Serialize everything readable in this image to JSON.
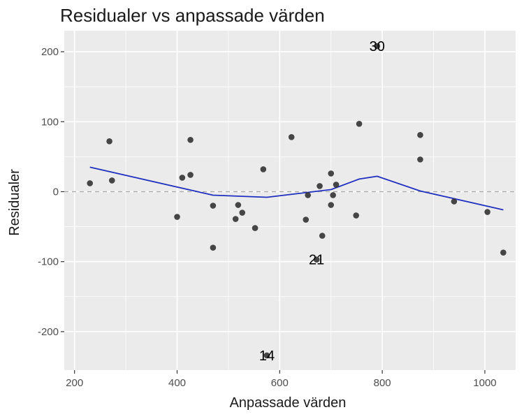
{
  "chart_data": {
    "type": "scatter",
    "title": "Residualer vs anpassade värden",
    "xlabel": "Anpassade värden",
    "ylabel": "Residualer",
    "xlim": [
      180,
      1060
    ],
    "ylim": [
      -255,
      230
    ],
    "x_ticks": [
      200,
      400,
      600,
      800,
      1000
    ],
    "y_ticks": [
      -200,
      -100,
      0,
      100,
      200
    ],
    "x_tick_labels": [
      "200",
      "400",
      "600",
      "800",
      "1000"
    ],
    "y_tick_labels": [
      "-200",
      "-100",
      "0",
      "100",
      "200"
    ],
    "grid": true,
    "reference_line": {
      "y": 0,
      "style": "dashed",
      "color": "#a6a6a6"
    },
    "colors": {
      "panel": "#ebebeb",
      "grid": "#ffffff",
      "point": "#333333",
      "smooth": "#1f2fbf"
    },
    "points": [
      {
        "x": 230,
        "y": 12
      },
      {
        "x": 268,
        "y": 72
      },
      {
        "x": 273,
        "y": 16
      },
      {
        "x": 400,
        "y": -36
      },
      {
        "x": 410,
        "y": 20
      },
      {
        "x": 426,
        "y": 24
      },
      {
        "x": 426,
        "y": 74
      },
      {
        "x": 470,
        "y": -20
      },
      {
        "x": 470,
        "y": -80
      },
      {
        "x": 514,
        "y": -39
      },
      {
        "x": 519,
        "y": -19
      },
      {
        "x": 527,
        "y": -30
      },
      {
        "x": 552,
        "y": -52
      },
      {
        "x": 568,
        "y": 32
      },
      {
        "x": 575,
        "y": -234
      },
      {
        "x": 623,
        "y": 78
      },
      {
        "x": 651,
        "y": -40
      },
      {
        "x": 655,
        "y": -5
      },
      {
        "x": 672,
        "y": -97
      },
      {
        "x": 678,
        "y": 8
      },
      {
        "x": 683,
        "y": -63
      },
      {
        "x": 700,
        "y": 26
      },
      {
        "x": 700,
        "y": -19
      },
      {
        "x": 704,
        "y": -5
      },
      {
        "x": 710,
        "y": 10
      },
      {
        "x": 749,
        "y": -34
      },
      {
        "x": 755,
        "y": 97
      },
      {
        "x": 790,
        "y": 208
      },
      {
        "x": 874,
        "y": 81
      },
      {
        "x": 874,
        "y": 46
      },
      {
        "x": 940,
        "y": -14
      },
      {
        "x": 1005,
        "y": -29
      },
      {
        "x": 1036,
        "y": -87
      }
    ],
    "smooth_line": [
      {
        "x": 230,
        "y": 35
      },
      {
        "x": 470,
        "y": -5
      },
      {
        "x": 575,
        "y": -8
      },
      {
        "x": 700,
        "y": 3
      },
      {
        "x": 755,
        "y": 18
      },
      {
        "x": 790,
        "y": 22
      },
      {
        "x": 874,
        "y": 1
      },
      {
        "x": 1036,
        "y": -26
      }
    ],
    "annotations": [
      {
        "x": 575,
        "y": -234,
        "text": "14"
      },
      {
        "x": 672,
        "y": -97,
        "text": "21"
      },
      {
        "x": 790,
        "y": 208,
        "text": "30"
      }
    ]
  }
}
